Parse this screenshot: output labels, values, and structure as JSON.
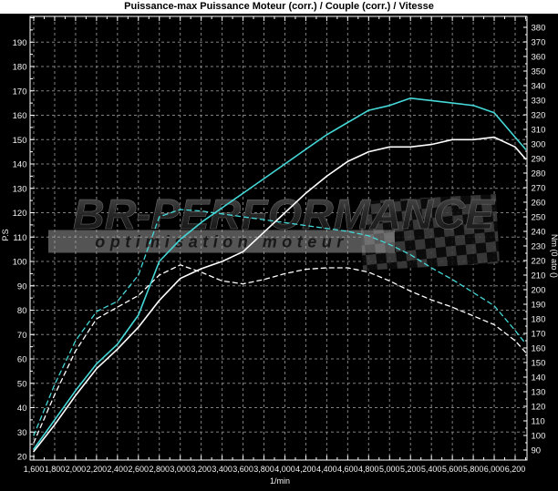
{
  "title": "Puissance-max Puissance Moteur (corr.) / Couple (corr.) / Vitesse",
  "watermark": {
    "brand": "BR-PERFORMANCE",
    "tagline": "optimisation moteur"
  },
  "colors": {
    "background": "#000000",
    "titlebar_bg": "#ffffff",
    "titlebar_text": "#000000",
    "grid": "#8f8f8f",
    "frame": "#ffffff",
    "tick_text": "#f2f2f2",
    "curve_cyan": "#45d8d8",
    "curve_white": "#ffffff"
  },
  "chart_data": {
    "type": "line",
    "title": "Puissance-max Puissance Moteur (corr.) / Couple (corr.) / Vitesse",
    "x_axis": {
      "label": "1/min",
      "min": 1600,
      "max": 6200,
      "tick_step": 200,
      "tick_labels": [
        "1,600",
        "1,800",
        "2,000",
        "2,200",
        "2,400",
        "2,600",
        "2,800",
        "3,000",
        "3,200",
        "3,400",
        "3,600",
        "3,800",
        "4,000",
        "4,200",
        "4,400",
        "4,600",
        "4,800",
        "5,000",
        "5,200",
        "5,400",
        "5,600",
        "5,800",
        "6,000",
        "6,200"
      ]
    },
    "y_axis_left": {
      "label": "P.S",
      "min": 20,
      "max": 190,
      "tick_step": 10
    },
    "y_axis_right": {
      "label": "Nm (0 ato ()",
      "min": 90,
      "max": 380,
      "tick_step": 10
    },
    "grid": {
      "show": true,
      "dash": "3,3"
    },
    "legend": "none",
    "x": [
      1600,
      1800,
      2000,
      2200,
      2400,
      2600,
      2800,
      3000,
      3200,
      3400,
      3600,
      3800,
      4000,
      4200,
      4400,
      4600,
      4800,
      5000,
      5200,
      5400,
      5600,
      5800,
      6000,
      6200,
      6300
    ],
    "series": [
      {
        "name": "Couple (corr.) — blanc",
        "axis": "right",
        "unit": "Nm",
        "color": "#ffffff",
        "style": "dashed",
        "values": [
          95,
          128,
          158,
          180,
          188,
          196,
          210,
          217,
          212,
          206,
          204,
          207,
          211,
          214,
          215,
          215,
          212,
          206,
          199,
          193,
          188,
          182,
          176,
          165,
          157
        ]
      },
      {
        "name": "Couple (corr.) — cyan",
        "axis": "right",
        "unit": "Nm",
        "color": "#45d8d8",
        "style": "dashed",
        "values": [
          100,
          135,
          165,
          185,
          192,
          210,
          250,
          255,
          254,
          252,
          250,
          248,
          246,
          244,
          242,
          240,
          237,
          231,
          224,
          215,
          207,
          198,
          189,
          172,
          163
        ]
      },
      {
        "name": "Puissance Moteur (corr.) — blanc",
        "axis": "left",
        "unit": "PS",
        "color": "#ffffff",
        "style": "solid",
        "values": [
          22,
          33,
          45,
          56,
          64,
          73,
          84,
          93,
          97,
          100,
          104,
          112,
          120,
          128,
          135,
          141,
          145,
          147,
          147,
          148,
          150,
          150,
          151,
          147,
          142
        ]
      },
      {
        "name": "Puissance Moteur (corr.) — cyan",
        "axis": "left",
        "unit": "PS",
        "color": "#45d8d8",
        "style": "solid",
        "values": [
          23,
          35,
          47,
          58,
          66,
          78,
          100,
          109,
          116,
          122,
          128,
          134,
          140,
          146,
          152,
          157,
          162,
          164,
          167,
          166,
          165,
          164,
          161,
          151,
          146
        ]
      }
    ]
  }
}
